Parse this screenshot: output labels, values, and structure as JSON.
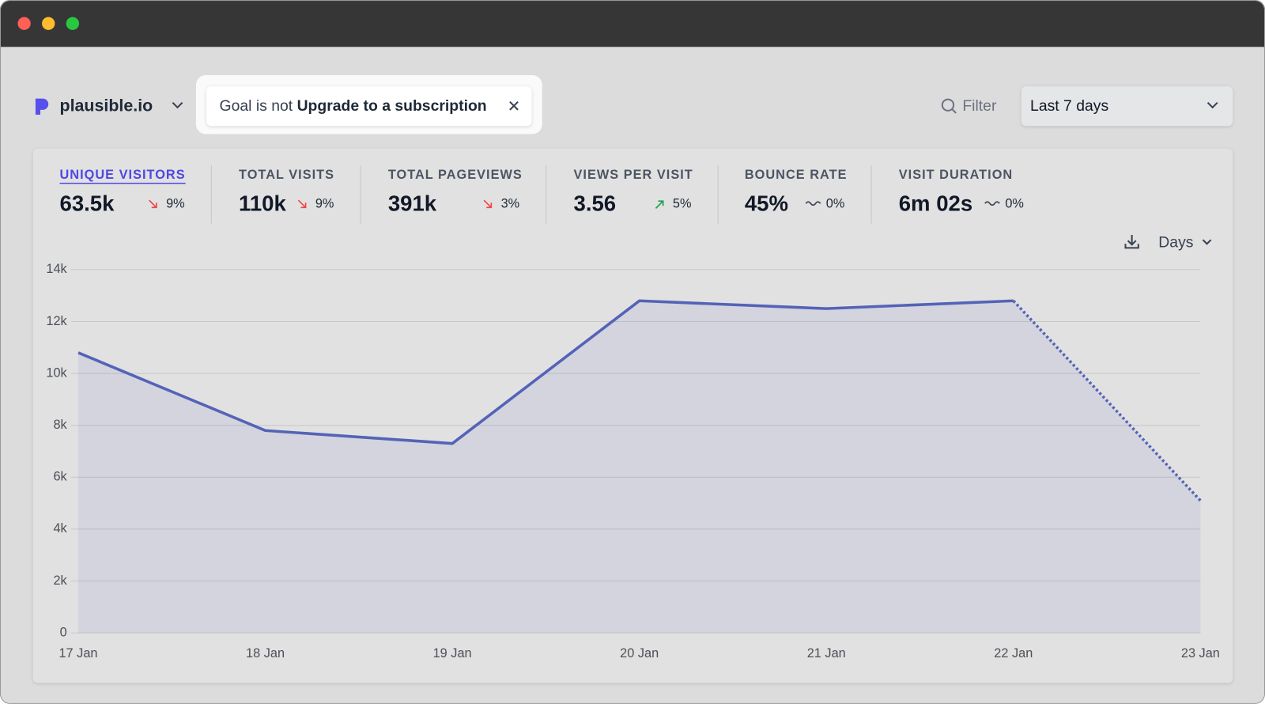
{
  "header": {
    "site": "plausible.io",
    "filter": {
      "prefix": "Goal is not",
      "goal": "Upgrade to a subscription"
    },
    "filter_button": "Filter",
    "period": "Last 7 days"
  },
  "metrics": [
    {
      "label": "UNIQUE VISITORS",
      "value": "63.5k",
      "change": "9%",
      "trend": "down",
      "active": true
    },
    {
      "label": "TOTAL VISITS",
      "value": "110k",
      "change": "9%",
      "trend": "down",
      "active": false
    },
    {
      "label": "TOTAL PAGEVIEWS",
      "value": "391k",
      "change": "3%",
      "trend": "down",
      "active": false
    },
    {
      "label": "VIEWS PER VISIT",
      "value": "3.56",
      "change": "5%",
      "trend": "up",
      "active": false
    },
    {
      "label": "BOUNCE RATE",
      "value": "45%",
      "change": "0%",
      "trend": "flat",
      "active": false
    },
    {
      "label": "VISIT DURATION",
      "value": "6m 02s",
      "change": "0%",
      "trend": "flat",
      "active": false
    }
  ],
  "interval": "Days",
  "chart_data": {
    "type": "line",
    "categories": [
      "17 Jan",
      "18 Jan",
      "19 Jan",
      "20 Jan",
      "21 Jan",
      "22 Jan",
      "23 Jan"
    ],
    "values": [
      10800,
      7800,
      7300,
      12800,
      12500,
      12800,
      5100
    ],
    "color": "#5463b8",
    "area": true,
    "dotted_last_segment": true,
    "grid": true,
    "ylim": [
      0,
      14000
    ],
    "yticks": [
      0,
      {
        "value": 2000,
        "label": "2k"
      },
      {
        "value": 4000,
        "label": "4k"
      },
      {
        "value": 6000,
        "label": "6k"
      },
      {
        "value": 8000,
        "label": "8k"
      },
      {
        "value": 10000,
        "label": "10k"
      },
      {
        "value": 12000,
        "label": "12k"
      },
      {
        "value": 14000,
        "label": "14k"
      }
    ]
  }
}
